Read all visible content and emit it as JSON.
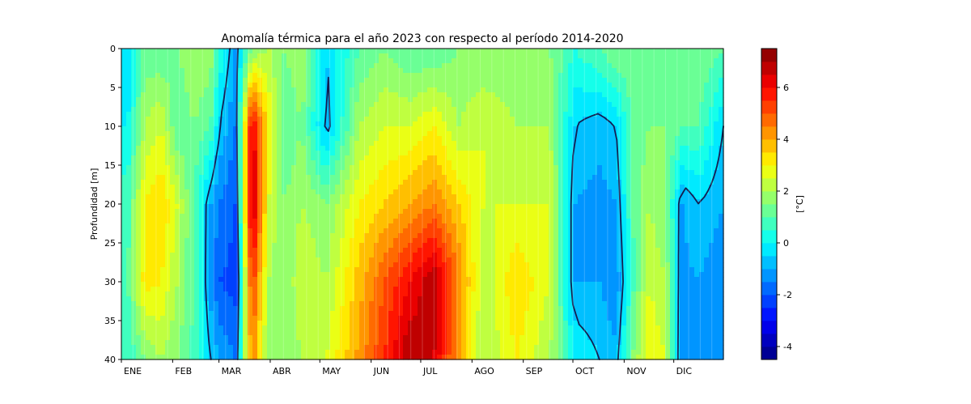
{
  "chart_data": {
    "type": "heatmap",
    "title": "Anomalía térmica para el año 2023 con respecto al período 2014-2020",
    "xlabel": "",
    "ylabel": "Profundidad [m]",
    "x_ticks": [
      "ENE",
      "FEB",
      "MAR",
      "ABR",
      "MAY",
      "JUN",
      "JUL",
      "AGO",
      "SEP",
      "OCT",
      "NOV",
      "DIC"
    ],
    "y_ticks": [
      0,
      5,
      10,
      15,
      20,
      25,
      30,
      35,
      40
    ],
    "ylim": [
      40,
      0
    ],
    "y_inverted": true,
    "colorbar": {
      "label": "[°C]",
      "ticks": [
        -4,
        -2,
        0,
        2,
        4,
        6
      ],
      "range": [
        -4.5,
        7.5
      ],
      "levels": [
        -4.5,
        -4,
        -3.5,
        -3,
        -2.5,
        -2,
        -1.5,
        -1,
        -0.5,
        0,
        0.5,
        1,
        1.5,
        2,
        2.5,
        3,
        3.5,
        4,
        4.5,
        5,
        5.5,
        6,
        6.5,
        7,
        7.5
      ],
      "colormap": "jet"
    },
    "contour_level": -0.5,
    "contour_color": "#141e50",
    "day_of_year": [
      5,
      15,
      25,
      35,
      45,
      55,
      60,
      70,
      80,
      90,
      100,
      110,
      125,
      145,
      160,
      175,
      190,
      205,
      220,
      240,
      260,
      275,
      290,
      300,
      310,
      320,
      330,
      340,
      350,
      365
    ],
    "depth_m": [
      0,
      10,
      20,
      30,
      40
    ],
    "anomaly_c": [
      [
        -0.5,
        0.0,
        0.8,
        1.0,
        0.5
      ],
      [
        1.2,
        2.0,
        3.0,
        3.2,
        1.5
      ],
      [
        1.0,
        2.5,
        3.5,
        3.0,
        2.0
      ],
      [
        1.5,
        1.0,
        2.5,
        2.0,
        1.5
      ],
      [
        2.0,
        1.5,
        0.8,
        1.0,
        0.8
      ],
      [
        1.8,
        1.0,
        -1.0,
        -1.2,
        -0.5
      ],
      [
        0.5,
        -0.5,
        -1.5,
        -2.0,
        -1.0
      ],
      [
        -1.0,
        -1.5,
        -2.0,
        -2.2,
        -1.5
      ],
      [
        1.5,
        6.5,
        7.0,
        5.5,
        4.5
      ],
      [
        2.0,
        3.0,
        2.5,
        2.0,
        1.5
      ],
      [
        1.5,
        1.0,
        1.5,
        1.5,
        1.5
      ],
      [
        2.0,
        1.5,
        2.0,
        2.5,
        2.0
      ],
      [
        -0.5,
        -0.8,
        1.5,
        2.0,
        2.5
      ],
      [
        1.0,
        2.0,
        3.0,
        3.8,
        4.2
      ],
      [
        1.5,
        2.5,
        3.5,
        5.0,
        5.5
      ],
      [
        1.0,
        2.5,
        4.0,
        6.0,
        7.0
      ],
      [
        1.0,
        3.0,
        4.5,
        7.0,
        6.5
      ],
      [
        1.5,
        2.0,
        3.5,
        4.5,
        4.0
      ],
      [
        1.5,
        2.5,
        2.5,
        2.0,
        2.0
      ],
      [
        1.5,
        2.0,
        2.5,
        3.5,
        3.0
      ],
      [
        1.5,
        2.0,
        2.5,
        2.5,
        2.0
      ],
      [
        0.5,
        -0.5,
        -1.0,
        -1.0,
        0.0
      ],
      [
        1.0,
        -0.8,
        -1.2,
        -1.0,
        -0.5
      ],
      [
        1.5,
        -0.5,
        -1.0,
        -1.5,
        -0.8
      ],
      [
        1.5,
        1.0,
        1.0,
        0.8,
        1.5
      ],
      [
        1.5,
        1.5,
        2.0,
        2.5,
        3.0
      ],
      [
        1.0,
        1.5,
        1.5,
        2.0,
        2.5
      ],
      [
        1.0,
        1.0,
        -1.0,
        -1.2,
        -1.5
      ],
      [
        1.5,
        1.0,
        -0.5,
        -1.0,
        -1.5
      ],
      [
        1.0,
        -0.5,
        -1.0,
        -1.5,
        -1.0
      ]
    ]
  }
}
